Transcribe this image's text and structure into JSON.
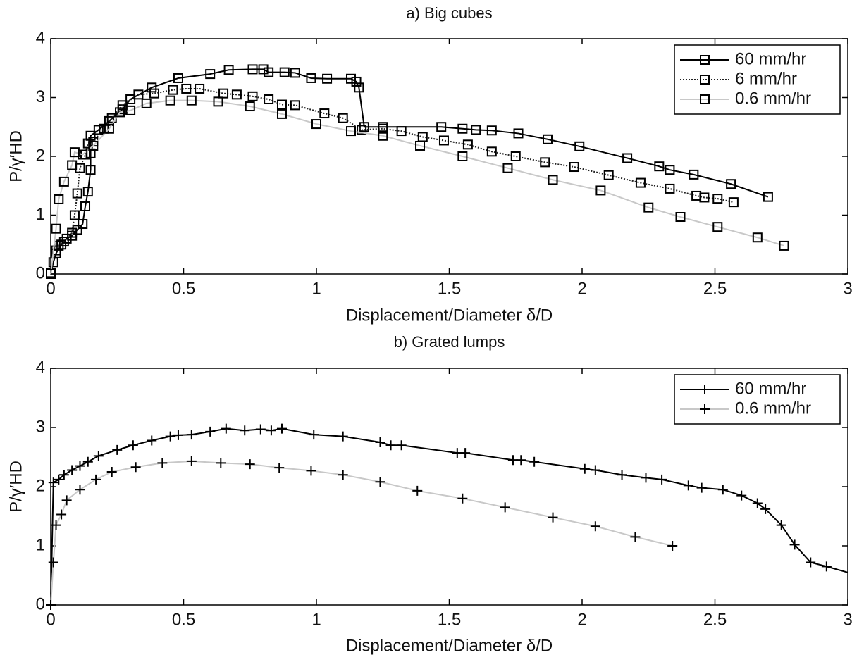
{
  "chart_data": [
    {
      "type": "line",
      "title": "a) Big cubes",
      "xlabel": "Displacement/Diameter δ/D",
      "ylabel": "P/γ′HD",
      "xlim": [
        0,
        3
      ],
      "ylim": [
        0,
        4
      ],
      "xticks": [
        0,
        0.5,
        1,
        1.5,
        2,
        2.5,
        3
      ],
      "yticks": [
        0,
        1,
        2,
        3,
        4
      ],
      "legend": "upper right",
      "marker": "square",
      "marker_color": "#000000",
      "series": [
        {
          "name": "60 mm/hr",
          "color": "#000000",
          "linestyle": "solid",
          "x": [
            0,
            0.01,
            0.02,
            0.04,
            0.06,
            0.08,
            0.1,
            0.12,
            0.13,
            0.14,
            0.15,
            0.15,
            0.15,
            0.18,
            0.22,
            0.27,
            0.3,
            0.38,
            0.48,
            0.6,
            0.67,
            0.76,
            0.8,
            0.82,
            0.88,
            0.92,
            0.98,
            1.04,
            1.13,
            1.15,
            1.16,
            1.18,
            1.25,
            1.47,
            1.55,
            1.6,
            1.66,
            1.76,
            1.87,
            1.99,
            2.17,
            2.29,
            2.33,
            2.42,
            2.56,
            2.7
          ],
          "values": [
            0.02,
            0.2,
            0.35,
            0.5,
            0.6,
            0.65,
            0.75,
            0.85,
            1.15,
            1.4,
            1.77,
            2.05,
            2.35,
            2.45,
            2.6,
            2.8,
            2.97,
            3.17,
            3.33,
            3.4,
            3.47,
            3.48,
            3.48,
            3.43,
            3.43,
            3.42,
            3.33,
            3.32,
            3.32,
            3.27,
            3.17,
            2.5,
            2.5,
            2.5,
            2.47,
            2.45,
            2.44,
            2.39,
            2.29,
            2.17,
            1.97,
            1.83,
            1.77,
            1.69,
            1.53,
            1.31
          ]
        },
        {
          "name": "6 mm/hr",
          "color": "#222222",
          "linestyle": "dotted",
          "x": [
            0.02,
            0.03,
            0.05,
            0.08,
            0.09,
            0.1,
            0.11,
            0.13,
            0.14,
            0.16,
            0.2,
            0.23,
            0.27,
            0.33,
            0.39,
            0.46,
            0.51,
            0.56,
            0.65,
            0.7,
            0.76,
            0.82,
            0.87,
            0.92,
            1.03,
            1.1,
            1.17,
            1.25,
            1.32,
            1.4,
            1.48,
            1.57,
            1.66,
            1.75,
            1.86,
            1.97,
            2.1,
            2.22,
            2.33,
            2.43,
            2.46,
            2.51,
            2.57
          ],
          "values": [
            0.4,
            0.48,
            0.55,
            0.7,
            1.0,
            1.37,
            1.8,
            2.03,
            2.22,
            2.25,
            2.47,
            2.65,
            2.87,
            3.05,
            3.07,
            3.13,
            3.15,
            3.15,
            3.07,
            3.05,
            3.02,
            2.97,
            2.88,
            2.87,
            2.73,
            2.65,
            2.45,
            2.47,
            2.43,
            2.33,
            2.27,
            2.2,
            2.08,
            2.0,
            1.9,
            1.82,
            1.68,
            1.55,
            1.45,
            1.33,
            1.3,
            1.28,
            1.22
          ]
        },
        {
          "name": "0.6 mm/hr",
          "color": "#c8c8c8",
          "linestyle": "solid",
          "x": [
            0,
            0.02,
            0.03,
            0.05,
            0.08,
            0.09,
            0.12,
            0.16,
            0.22,
            0.26,
            0.3,
            0.36,
            0.45,
            0.53,
            0.63,
            0.75,
            0.87,
            1.0,
            1.13,
            1.25,
            1.39,
            1.55,
            1.72,
            1.89,
            2.07,
            2.25,
            2.37,
            2.51,
            2.66,
            2.76
          ],
          "values": [
            0,
            0.77,
            1.27,
            1.57,
            1.85,
            2.07,
            2.03,
            2.18,
            2.47,
            2.75,
            2.78,
            2.9,
            2.95,
            2.95,
            2.93,
            2.85,
            2.72,
            2.55,
            2.43,
            2.35,
            2.18,
            2.0,
            1.8,
            1.6,
            1.42,
            1.13,
            0.97,
            0.8,
            0.62,
            0.48
          ]
        }
      ]
    },
    {
      "type": "line",
      "title": "b) Grated lumps",
      "xlabel": "Displacement/Diameter δ/D",
      "ylabel": "P/γ′HD",
      "xlim": [
        0,
        3
      ],
      "ylim": [
        0,
        4
      ],
      "xticks": [
        0,
        0.5,
        1,
        1.5,
        2,
        2.5,
        3
      ],
      "yticks": [
        0,
        1,
        2,
        3,
        4
      ],
      "legend": "upper right",
      "marker": "plus",
      "marker_color": "#000000",
      "series": [
        {
          "name": "60 mm/hr",
          "color": "#000000",
          "linestyle": "solid",
          "x": [
            0,
            0.01,
            0.03,
            0.05,
            0.08,
            0.11,
            0.14,
            0.18,
            0.25,
            0.31,
            0.38,
            0.45,
            0.48,
            0.53,
            0.6,
            0.66,
            0.73,
            0.79,
            0.83,
            0.87,
            0.99,
            1.1,
            1.24,
            1.28,
            1.32,
            1.53,
            1.56,
            1.74,
            1.77,
            1.82,
            2.01,
            2.05,
            2.15,
            2.24,
            2.3,
            2.4,
            2.45,
            2.53,
            2.6,
            2.66,
            2.69,
            2.75,
            2.8,
            2.86,
            2.92,
            3.0
          ],
          "values": [
            0,
            2.07,
            2.12,
            2.2,
            2.28,
            2.35,
            2.42,
            2.52,
            2.62,
            2.7,
            2.78,
            2.85,
            2.87,
            2.88,
            2.93,
            2.98,
            2.95,
            2.97,
            2.95,
            2.98,
            2.88,
            2.85,
            2.75,
            2.7,
            2.7,
            2.57,
            2.57,
            2.45,
            2.45,
            2.42,
            2.3,
            2.28,
            2.2,
            2.15,
            2.12,
            2.02,
            1.98,
            1.95,
            1.85,
            1.72,
            1.62,
            1.35,
            1.02,
            0.72,
            0.65,
            0.55
          ]
        },
        {
          "name": "0.6 mm/hr",
          "color": "#c8c8c8",
          "linestyle": "solid",
          "x": [
            0,
            0.01,
            0.02,
            0.04,
            0.06,
            0.11,
            0.17,
            0.23,
            0.32,
            0.42,
            0.53,
            0.64,
            0.75,
            0.86,
            0.98,
            1.1,
            1.24,
            1.38,
            1.55,
            1.71,
            1.89,
            2.05,
            2.2,
            2.34
          ],
          "values": [
            0,
            0.72,
            1.35,
            1.53,
            1.77,
            1.95,
            2.12,
            2.25,
            2.33,
            2.4,
            2.43,
            2.4,
            2.38,
            2.32,
            2.27,
            2.2,
            2.08,
            1.93,
            1.8,
            1.65,
            1.48,
            1.33,
            1.15,
            1.0
          ]
        }
      ]
    }
  ]
}
